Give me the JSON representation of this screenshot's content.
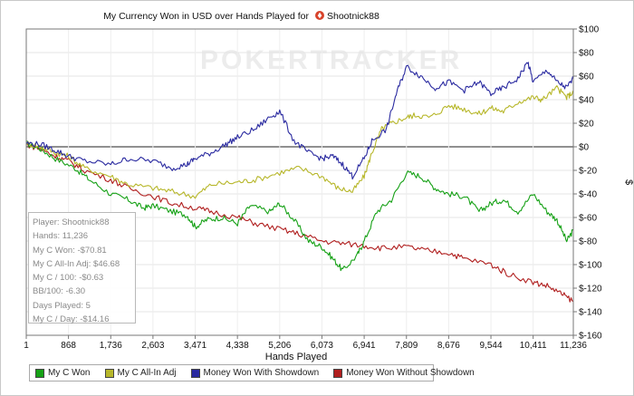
{
  "chart_data": {
    "type": "line",
    "title": "My Currency Won in USD over Hands Played for",
    "player_in_title": "Shootnick88",
    "watermark": "POKERTRACKER",
    "xlabel": "Hands Played",
    "ylabel": "$",
    "x_ticks": [
      "1",
      "868",
      "1,736",
      "2,603",
      "3,471",
      "4,338",
      "5,206",
      "6,073",
      "6,941",
      "7,809",
      "8,676",
      "9,544",
      "10,411",
      "11,236"
    ],
    "xlim": [
      1,
      11236
    ],
    "y_ticks": [
      "$100",
      "$80",
      "$60",
      "$40",
      "$20",
      "$0",
      "$-20",
      "$-40",
      "$-60",
      "$-80",
      "$-100",
      "$-120",
      "$-140",
      "$-160"
    ],
    "ylim": [
      -160,
      100
    ],
    "grid": true,
    "legend_position": "bottom",
    "series": [
      {
        "name": "My C Won",
        "color": "#16a116",
        "x": [
          1,
          300,
          600,
          1000,
          1300,
          1736,
          2100,
          2400,
          2603,
          3000,
          3300,
          3471,
          3700,
          4000,
          4338,
          4600,
          5000,
          5206,
          5500,
          5800,
          6073,
          6300,
          6500,
          6800,
          6941,
          7200,
          7500,
          7809,
          8100,
          8400,
          8676,
          9000,
          9300,
          9544,
          9800,
          10100,
          10411,
          10700,
          10900,
          11100,
          11236
        ],
        "y": [
          3,
          -2,
          -10,
          -18,
          -28,
          -40,
          -45,
          -52,
          -50,
          -55,
          -58,
          -68,
          -62,
          -60,
          -65,
          -50,
          -55,
          -48,
          -62,
          -80,
          -85,
          -95,
          -105,
          -92,
          -80,
          -55,
          -45,
          -22,
          -25,
          -35,
          -40,
          -42,
          -55,
          -48,
          -45,
          -55,
          -40,
          -55,
          -62,
          -80,
          -70.81
        ]
      },
      {
        "name": "My C All-In Adj",
        "color": "#b7b72a",
        "x": [
          1,
          300,
          600,
          868,
          1200,
          1736,
          2100,
          2603,
          3000,
          3471,
          3800,
          4338,
          4700,
          5206,
          5600,
          6073,
          6400,
          6700,
          6941,
          7100,
          7300,
          7500,
          7809,
          8000,
          8300,
          8676,
          9000,
          9300,
          9544,
          9800,
          10100,
          10411,
          10600,
          10900,
          11100,
          11236
        ],
        "y": [
          3,
          0,
          -5,
          -8,
          -18,
          -25,
          -32,
          -35,
          -38,
          -42,
          -32,
          -30,
          -28,
          -22,
          -18,
          -25,
          -35,
          -38,
          -25,
          -5,
          15,
          20,
          25,
          27,
          25,
          35,
          32,
          28,
          33,
          30,
          38,
          42,
          40,
          50,
          42,
          46.68
        ]
      },
      {
        "name": "Money Won With Showdown",
        "color": "#2a2aa0",
        "x": [
          1,
          300,
          600,
          868,
          1200,
          1736,
          2100,
          2603,
          3000,
          3300,
          3471,
          3800,
          4100,
          4338,
          4700,
          5000,
          5206,
          5500,
          5800,
          6073,
          6300,
          6500,
          6700,
          6941,
          7100,
          7400,
          7600,
          7809,
          8100,
          8400,
          8676,
          9000,
          9300,
          9544,
          9800,
          10100,
          10300,
          10411,
          10700,
          10900,
          11100,
          11236
        ],
        "y": [
          3,
          2,
          -3,
          -8,
          -12,
          -15,
          -10,
          -12,
          -18,
          -15,
          -10,
          -5,
          2,
          8,
          15,
          25,
          30,
          5,
          -5,
          -10,
          -8,
          -15,
          -25,
          -10,
          5,
          15,
          45,
          68,
          60,
          50,
          55,
          48,
          55,
          45,
          50,
          58,
          72,
          55,
          65,
          55,
          50,
          58
        ]
      },
      {
        "name": "Money Won Without Showdown",
        "color": "#b01e1e",
        "x": [
          1,
          300,
          600,
          868,
          1200,
          1736,
          2100,
          2603,
          3000,
          3471,
          3800,
          4338,
          4700,
          5206,
          5600,
          6073,
          6500,
          6941,
          7300,
          7809,
          8200,
          8676,
          9000,
          9544,
          9900,
          10411,
          10700,
          11000,
          11236
        ],
        "y": [
          2,
          -2,
          -8,
          -12,
          -20,
          -28,
          -35,
          -42,
          -48,
          -52,
          -55,
          -60,
          -65,
          -70,
          -74,
          -80,
          -82,
          -84,
          -86,
          -85,
          -88,
          -90,
          -95,
          -100,
          -108,
          -115,
          -118,
          -125,
          -131
        ]
      }
    ]
  },
  "stats": [
    "Player: Shootnick88",
    "Hands: 11,236",
    "My C Won: -$70.81",
    "My C All-In Adj: $46.68",
    "My C / 100: -$0.63",
    "BB/100: -6.30",
    "Days Played: 5",
    "My C / Day: -$14.16"
  ]
}
